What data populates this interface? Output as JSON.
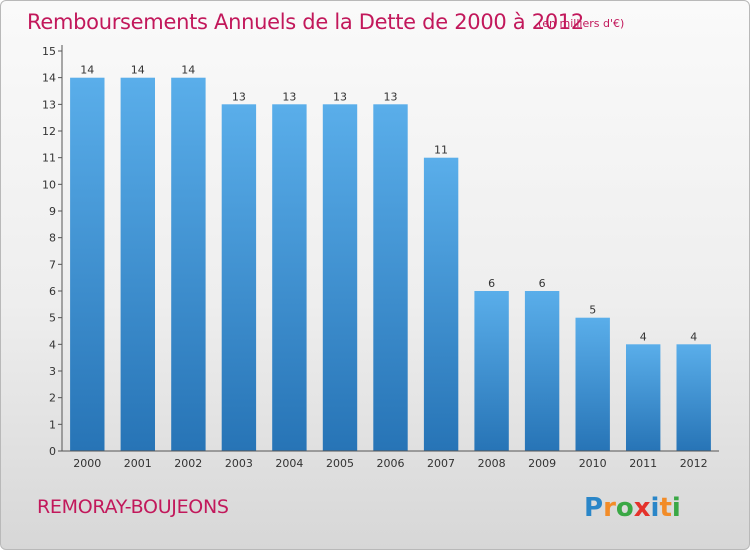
{
  "header": {
    "title": "Remboursements Annuels de la Dette de 2000 à 2012",
    "unit": "(en milliers d'€)"
  },
  "footer": {
    "commune": "REMORAY-BOUJEONS",
    "logo_text": "Proxiti"
  },
  "colors": {
    "title": "#c2185b",
    "bar_light": "#5aaeea",
    "bar_dark": "#2774b6",
    "axis": "#555555"
  },
  "chart_data": {
    "type": "bar",
    "title": "Remboursements Annuels de la Dette de 2000 à 2012",
    "xlabel": "",
    "ylabel": "",
    "categories": [
      "2000",
      "2001",
      "2002",
      "2003",
      "2004",
      "2005",
      "2006",
      "2007",
      "2008",
      "2009",
      "2010",
      "2011",
      "2012"
    ],
    "values": [
      14,
      14,
      14,
      13,
      13,
      13,
      13,
      11,
      6,
      6,
      5,
      4,
      4
    ],
    "ylim": [
      0,
      15
    ],
    "yticks": [
      0,
      1,
      2,
      3,
      4,
      5,
      6,
      7,
      8,
      9,
      10,
      11,
      12,
      13,
      14,
      15
    ],
    "grid": false,
    "data_labels": true
  }
}
